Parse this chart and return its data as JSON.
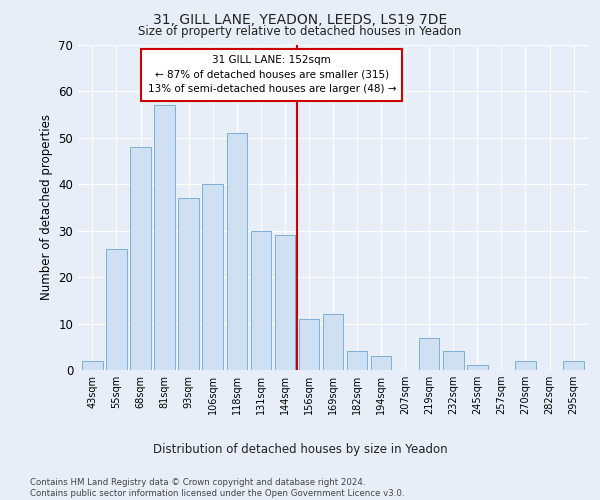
{
  "title": "31, GILL LANE, YEADON, LEEDS, LS19 7DE",
  "subtitle": "Size of property relative to detached houses in Yeadon",
  "xlabel": "Distribution of detached houses by size in Yeadon",
  "ylabel": "Number of detached properties",
  "categories": [
    "43sqm",
    "55sqm",
    "68sqm",
    "81sqm",
    "93sqm",
    "106sqm",
    "118sqm",
    "131sqm",
    "144sqm",
    "156sqm",
    "169sqm",
    "182sqm",
    "194sqm",
    "207sqm",
    "219sqm",
    "232sqm",
    "245sqm",
    "257sqm",
    "270sqm",
    "282sqm",
    "295sqm"
  ],
  "values": [
    2,
    26,
    48,
    57,
    37,
    40,
    51,
    30,
    29,
    11,
    12,
    4,
    3,
    0,
    7,
    4,
    1,
    0,
    2,
    0,
    2
  ],
  "bar_color": "#cfe0f3",
  "bar_edge_color": "#7aafd4",
  "bar_width": 0.85,
  "ylim": [
    0,
    70
  ],
  "yticks": [
    0,
    10,
    20,
    30,
    40,
    50,
    60,
    70
  ],
  "red_line_x": 8.5,
  "red_line_color": "#cc0000",
  "annotation_title": "31 GILL LANE: 152sqm",
  "annotation_line1": "← 87% of detached houses are smaller (315)",
  "annotation_line2": "13% of semi-detached houses are larger (48) →",
  "annotation_box_color": "#cc0000",
  "background_color": "#e8eef8",
  "grid_color": "#ffffff",
  "footer": "Contains HM Land Registry data © Crown copyright and database right 2024.\nContains public sector information licensed under the Open Government Licence v3.0."
}
